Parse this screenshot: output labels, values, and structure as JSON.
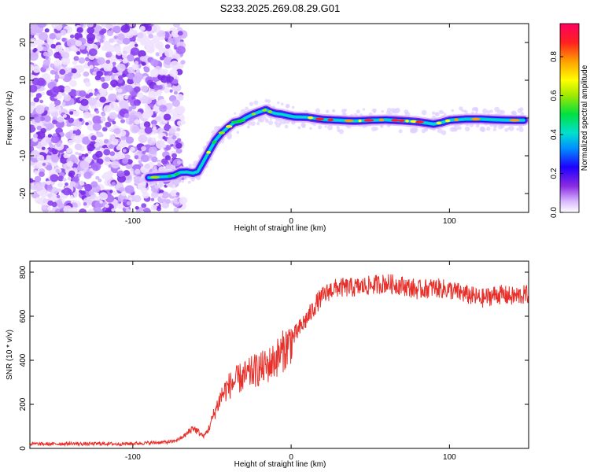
{
  "title": "S233.2025.269.08.29.G01",
  "chart_data": [
    {
      "type": "heatmap",
      "name": "spectrogram",
      "xlabel": "Height of straight line (km)",
      "ylabel": "Frequency (Hz)",
      "xlim": [
        -165,
        150
      ],
      "ylim": [
        -25,
        25
      ],
      "xticks": [
        -100,
        0,
        100
      ],
      "yticks": [
        -20,
        -10,
        0,
        10,
        20
      ],
      "noise_region_x": [
        -165,
        -73
      ],
      "ridge": {
        "x": [
          -90,
          -83,
          -78,
          -74,
          -70,
          -66,
          -62,
          -59,
          -56,
          -52,
          -48,
          -44,
          -40,
          -36,
          -32,
          -28,
          -24,
          -20,
          -16,
          -13,
          -10,
          -6,
          -2,
          2,
          10,
          20,
          30,
          40,
          50,
          60,
          70,
          80,
          90,
          95,
          100,
          110,
          120,
          130,
          140,
          147
        ],
        "y": [
          -15.8,
          -15.6,
          -15.5,
          -15.2,
          -14.4,
          -14.3,
          -14.6,
          -14.2,
          -12.0,
          -9.0,
          -6.0,
          -4.0,
          -2.5,
          -1.2,
          -0.8,
          0.2,
          1.0,
          1.6,
          2.2,
          1.6,
          1.2,
          1.0,
          0.6,
          0.3,
          0.2,
          -0.4,
          -0.6,
          -0.8,
          -0.6,
          -0.5,
          -0.7,
          -1.0,
          -1.6,
          -1.2,
          -0.6,
          -0.3,
          -0.3,
          -0.5,
          -0.6,
          -0.6
        ]
      },
      "colorbar": {
        "label": "Normalized spectral amplitude",
        "range": [
          0,
          0.97
        ],
        "ticks": [
          "0.0",
          "0.2",
          "0.4",
          "0.6",
          "0.8"
        ]
      }
    },
    {
      "type": "line",
      "name": "snr",
      "xlabel": "Height of straight line (km)",
      "ylabel": "SNR (10 * v/v)",
      "xlim": [
        -165,
        150
      ],
      "ylim": [
        0,
        850
      ],
      "xticks": [
        -100,
        0,
        100
      ],
      "yticks": [
        0,
        200,
        400,
        600,
        800
      ],
      "color": "#e8302a",
      "series": [
        {
          "name": "SNR",
          "x": [
            -165,
            -150,
            -140,
            -130,
            -120,
            -110,
            -100,
            -90,
            -80,
            -75,
            -70,
            -66,
            -62,
            -58,
            -55,
            -52,
            -48,
            -44,
            -40,
            -36,
            -32,
            -28,
            -24,
            -20,
            -16,
            -12,
            -8,
            -4,
            0,
            4,
            8,
            12,
            16,
            20,
            25,
            30,
            40,
            50,
            60,
            70,
            80,
            90,
            100,
            110,
            120,
            130,
            140,
            150
          ],
          "y": [
            20,
            20,
            22,
            20,
            22,
            20,
            22,
            25,
            28,
            30,
            45,
            65,
            95,
            70,
            55,
            90,
            170,
            240,
            280,
            300,
            320,
            330,
            350,
            360,
            370,
            390,
            420,
            450,
            490,
            530,
            570,
            610,
            660,
            690,
            720,
            730,
            730,
            740,
            750,
            740,
            720,
            730,
            720,
            700,
            680,
            700,
            690,
            700
          ]
        }
      ]
    }
  ]
}
